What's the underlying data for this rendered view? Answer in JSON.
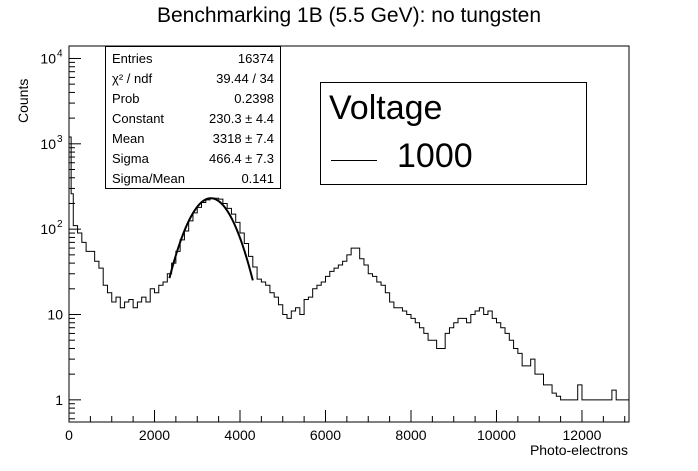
{
  "chart_data": {
    "type": "histogram",
    "title": "Benchmarking 1B (5.5 GeV): no tungsten",
    "xlabel": "Photo-electrons",
    "ylabel": "Counts",
    "xlim": [
      0,
      13100
    ],
    "ylim": [
      0.55,
      14000
    ],
    "yscale": "log",
    "x_ticks": [
      0,
      2000,
      4000,
      6000,
      8000,
      10000,
      12000
    ],
    "y_ticks": [
      {
        "value": 1,
        "label": "1"
      },
      {
        "value": 10,
        "label": "10"
      },
      {
        "value": 100,
        "label": "10",
        "exp": "2"
      },
      {
        "value": 1000,
        "label": "10",
        "exp": "3"
      },
      {
        "value": 10000,
        "label": "10",
        "exp": "4"
      }
    ],
    "bin_width": 50,
    "series": [
      {
        "name": "1000",
        "kind": "histogram",
        "points": [
          [
            0,
            1200
          ],
          [
            50,
            260
          ],
          [
            100,
            110
          ],
          [
            200,
            90
          ],
          [
            300,
            70
          ],
          [
            400,
            55
          ],
          [
            600,
            42
          ],
          [
            700,
            35
          ],
          [
            800,
            22
          ],
          [
            900,
            18
          ],
          [
            1000,
            14
          ],
          [
            1100,
            16
          ],
          [
            1200,
            12
          ],
          [
            1300,
            14
          ],
          [
            1400,
            15
          ],
          [
            1500,
            12
          ],
          [
            1600,
            14
          ],
          [
            1700,
            16
          ],
          [
            1800,
            14
          ],
          [
            1900,
            20
          ],
          [
            2000,
            18
          ],
          [
            2100,
            22
          ],
          [
            2200,
            24
          ],
          [
            2300,
            30
          ],
          [
            2400,
            40
          ],
          [
            2500,
            55
          ],
          [
            2600,
            75
          ],
          [
            2700,
            95
          ],
          [
            2800,
            125
          ],
          [
            2900,
            155
          ],
          [
            3000,
            180
          ],
          [
            3100,
            205
          ],
          [
            3200,
            220
          ],
          [
            3300,
            232
          ],
          [
            3400,
            230
          ],
          [
            3500,
            225
          ],
          [
            3600,
            200
          ],
          [
            3700,
            175
          ],
          [
            3800,
            150
          ],
          [
            3900,
            120
          ],
          [
            4000,
            90
          ],
          [
            4100,
            68
          ],
          [
            4200,
            48
          ],
          [
            4300,
            36
          ],
          [
            4400,
            26
          ],
          [
            4500,
            24
          ],
          [
            4600,
            22
          ],
          [
            4700,
            18
          ],
          [
            4800,
            16
          ],
          [
            4900,
            13
          ],
          [
            5000,
            10
          ],
          [
            5100,
            9
          ],
          [
            5200,
            11
          ],
          [
            5300,
            12
          ],
          [
            5400,
            10
          ],
          [
            5500,
            15
          ],
          [
            5600,
            16
          ],
          [
            5700,
            20
          ],
          [
            5800,
            22
          ],
          [
            5900,
            24
          ],
          [
            6000,
            28
          ],
          [
            6100,
            32
          ],
          [
            6200,
            35
          ],
          [
            6300,
            38
          ],
          [
            6400,
            42
          ],
          [
            6500,
            50
          ],
          [
            6600,
            60
          ],
          [
            6700,
            60
          ],
          [
            6800,
            45
          ],
          [
            6900,
            38
          ],
          [
            7000,
            30
          ],
          [
            7100,
            28
          ],
          [
            7200,
            24
          ],
          [
            7300,
            22
          ],
          [
            7400,
            18
          ],
          [
            7500,
            14
          ],
          [
            7600,
            12
          ],
          [
            7700,
            12
          ],
          [
            7800,
            11
          ],
          [
            7900,
            10
          ],
          [
            8000,
            9
          ],
          [
            8100,
            8
          ],
          [
            8200,
            7
          ],
          [
            8300,
            6
          ],
          [
            8400,
            5
          ],
          [
            8500,
            5
          ],
          [
            8600,
            4
          ],
          [
            8700,
            4
          ],
          [
            8800,
            6
          ],
          [
            8900,
            7
          ],
          [
            9000,
            8
          ],
          [
            9100,
            9
          ],
          [
            9200,
            9
          ],
          [
            9300,
            8
          ],
          [
            9400,
            10
          ],
          [
            9500,
            11
          ],
          [
            9600,
            12
          ],
          [
            9700,
            10
          ],
          [
            9800,
            11
          ],
          [
            9900,
            9
          ],
          [
            10000,
            8
          ],
          [
            10100,
            7
          ],
          [
            10200,
            6
          ],
          [
            10300,
            5
          ],
          [
            10400,
            4
          ],
          [
            10500,
            3.5
          ],
          [
            10600,
            2.5
          ],
          [
            10700,
            2.5
          ],
          [
            10800,
            3
          ],
          [
            10900,
            2
          ],
          [
            11000,
            2
          ],
          [
            11100,
            1.5
          ],
          [
            11200,
            1.5
          ],
          [
            11300,
            1.2
          ],
          [
            11400,
            1.1
          ],
          [
            11500,
            1
          ],
          [
            11600,
            1
          ],
          [
            11700,
            1
          ],
          [
            11800,
            1
          ],
          [
            11900,
            1.5
          ],
          [
            12000,
            1
          ],
          [
            12100,
            1
          ],
          [
            12200,
            1
          ],
          [
            12300,
            1
          ],
          [
            12400,
            1
          ],
          [
            12500,
            1
          ],
          [
            12600,
            1
          ],
          [
            12700,
            1.3
          ],
          [
            12800,
            1
          ],
          [
            12900,
            1
          ],
          [
            13000,
            1
          ]
        ]
      }
    ],
    "fit": {
      "kind": "gaussian",
      "constant": 230.3,
      "mean": 3318,
      "sigma": 466.4,
      "range": [
        2350,
        4300
      ]
    },
    "stats": [
      {
        "key": "Entries",
        "value": "16374"
      },
      {
        "key": "χ² / ndf",
        "value": "39.44 / 34"
      },
      {
        "key": "Prob",
        "value": "0.2398"
      },
      {
        "key": "Constant",
        "value": "230.3 ± 4.4"
      },
      {
        "key": "Mean",
        "value": "3318 ± 7.4"
      },
      {
        "key": "Sigma",
        "value": "466.4 ± 7.3"
      },
      {
        "key": "Sigma/Mean",
        "value": "0.141"
      }
    ],
    "legend": {
      "header": "Voltage",
      "entry": "1000",
      "placement": "top-right"
    },
    "grid": false
  },
  "colors": {
    "line": "#000000",
    "background": "#ffffff"
  }
}
